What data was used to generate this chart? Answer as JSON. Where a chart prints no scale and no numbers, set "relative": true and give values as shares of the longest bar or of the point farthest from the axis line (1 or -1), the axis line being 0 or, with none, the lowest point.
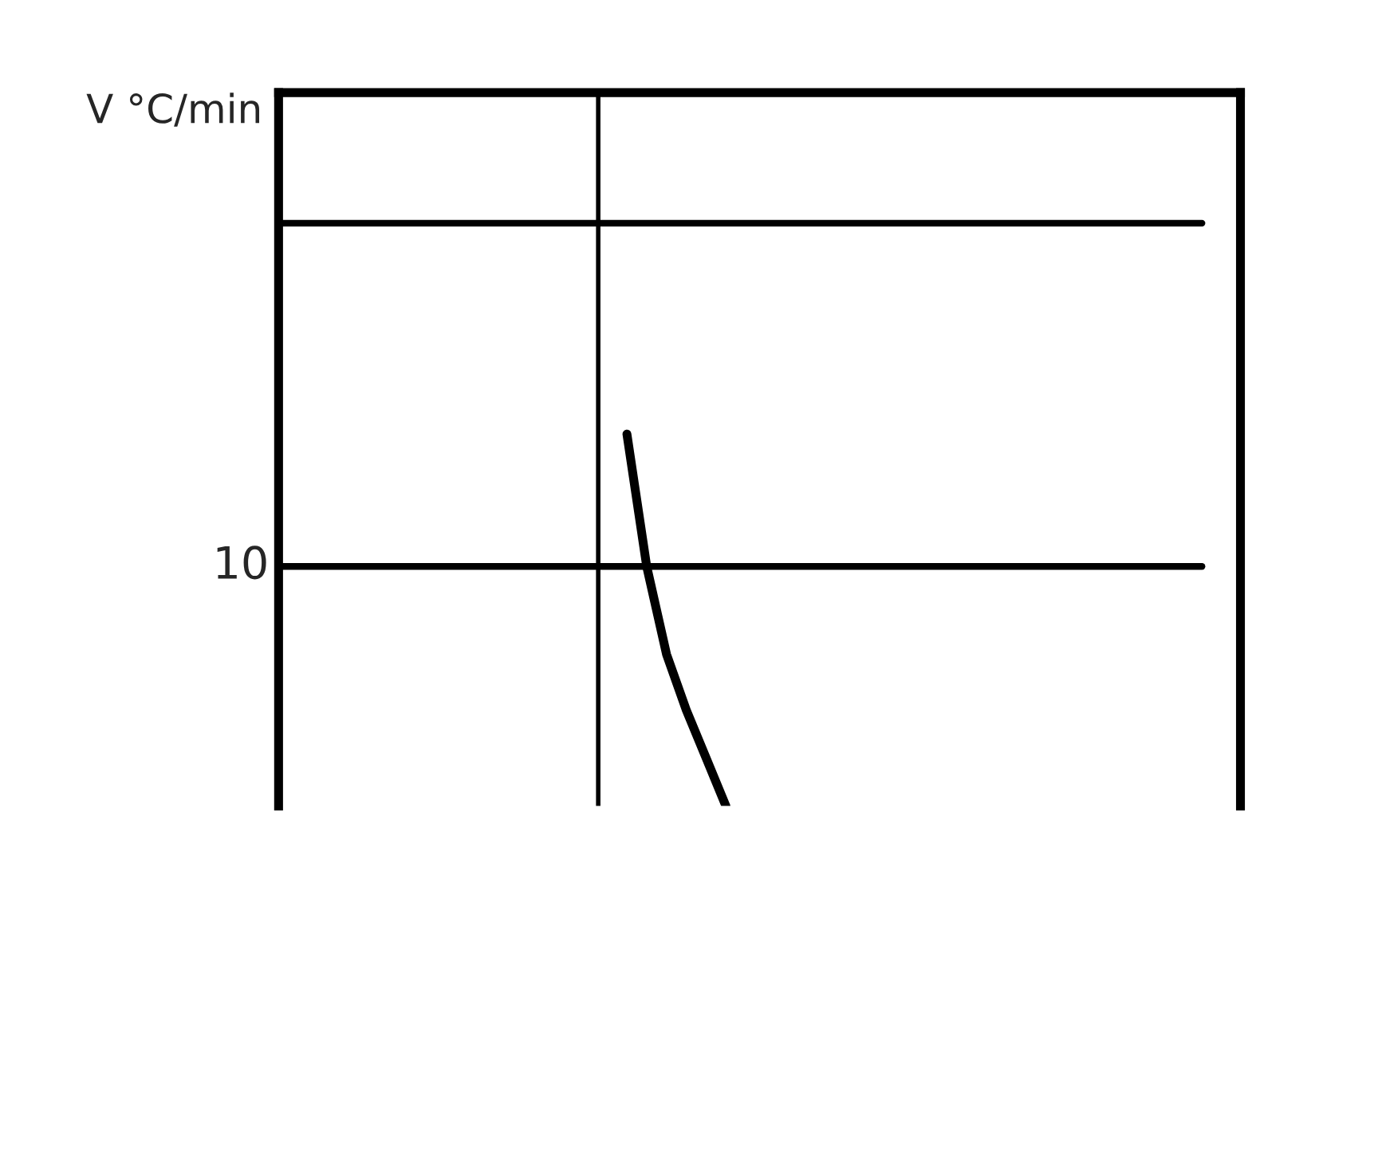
{
  "chart_data": {
    "type": "line",
    "relative": true,
    "categories": [
      null,
      null,
      null,
      null,
      null,
      null
    ],
    "series": [
      {
        "color": "#000000",
        "values": [
          1,
          0.644,
          0.408,
          0.258,
          0.129,
          0
        ]
      }
    ],
    "ref_lines": [
      {
        "axis": "y",
        "value": 0.644,
        "color": "#000000"
      },
      {
        "axis": "y",
        "value": 1.567,
        "color": "#000000"
      }
    ],
    "annotations": [
      "V °C/min",
      "10"
    ],
    "marker": "none",
    "line_style": "solid"
  }
}
